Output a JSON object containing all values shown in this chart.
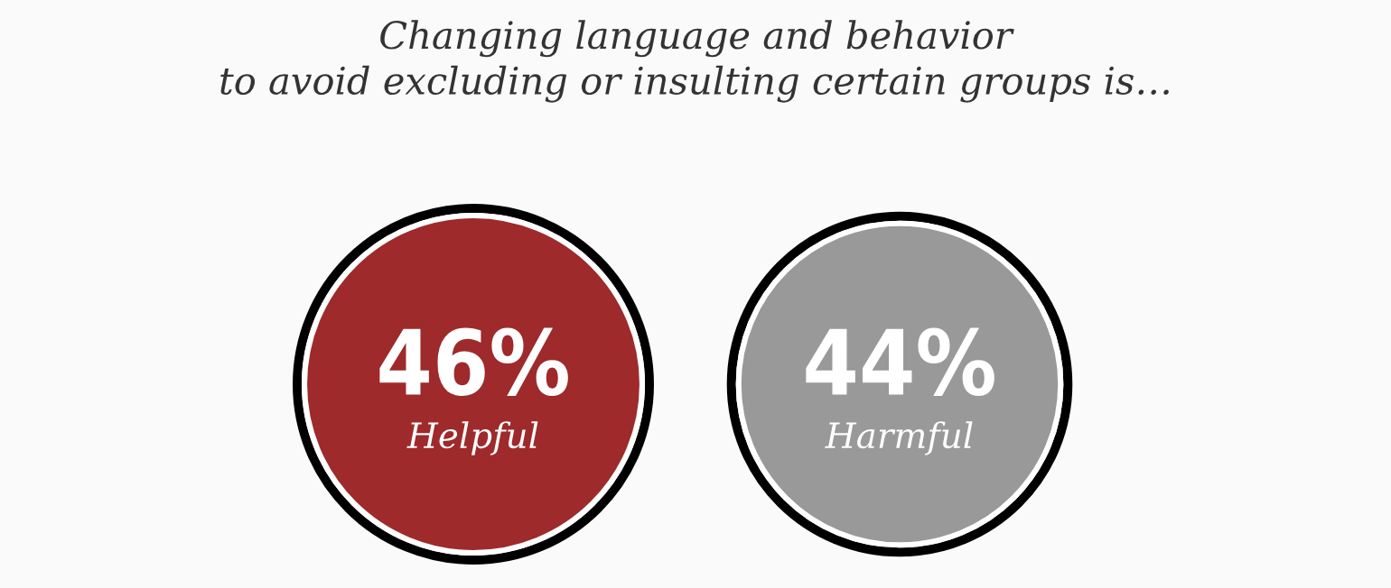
{
  "chart_data": {
    "type": "other",
    "title": "Changing language and behavior\nto avoid excluding or insulting certain groups is…",
    "categories": [
      "Helpful",
      "Harmful"
    ],
    "values": [
      46,
      44
    ],
    "value_labels": [
      "46%",
      "44%"
    ],
    "colors": [
      "#9e2a2b",
      "#999999"
    ]
  }
}
